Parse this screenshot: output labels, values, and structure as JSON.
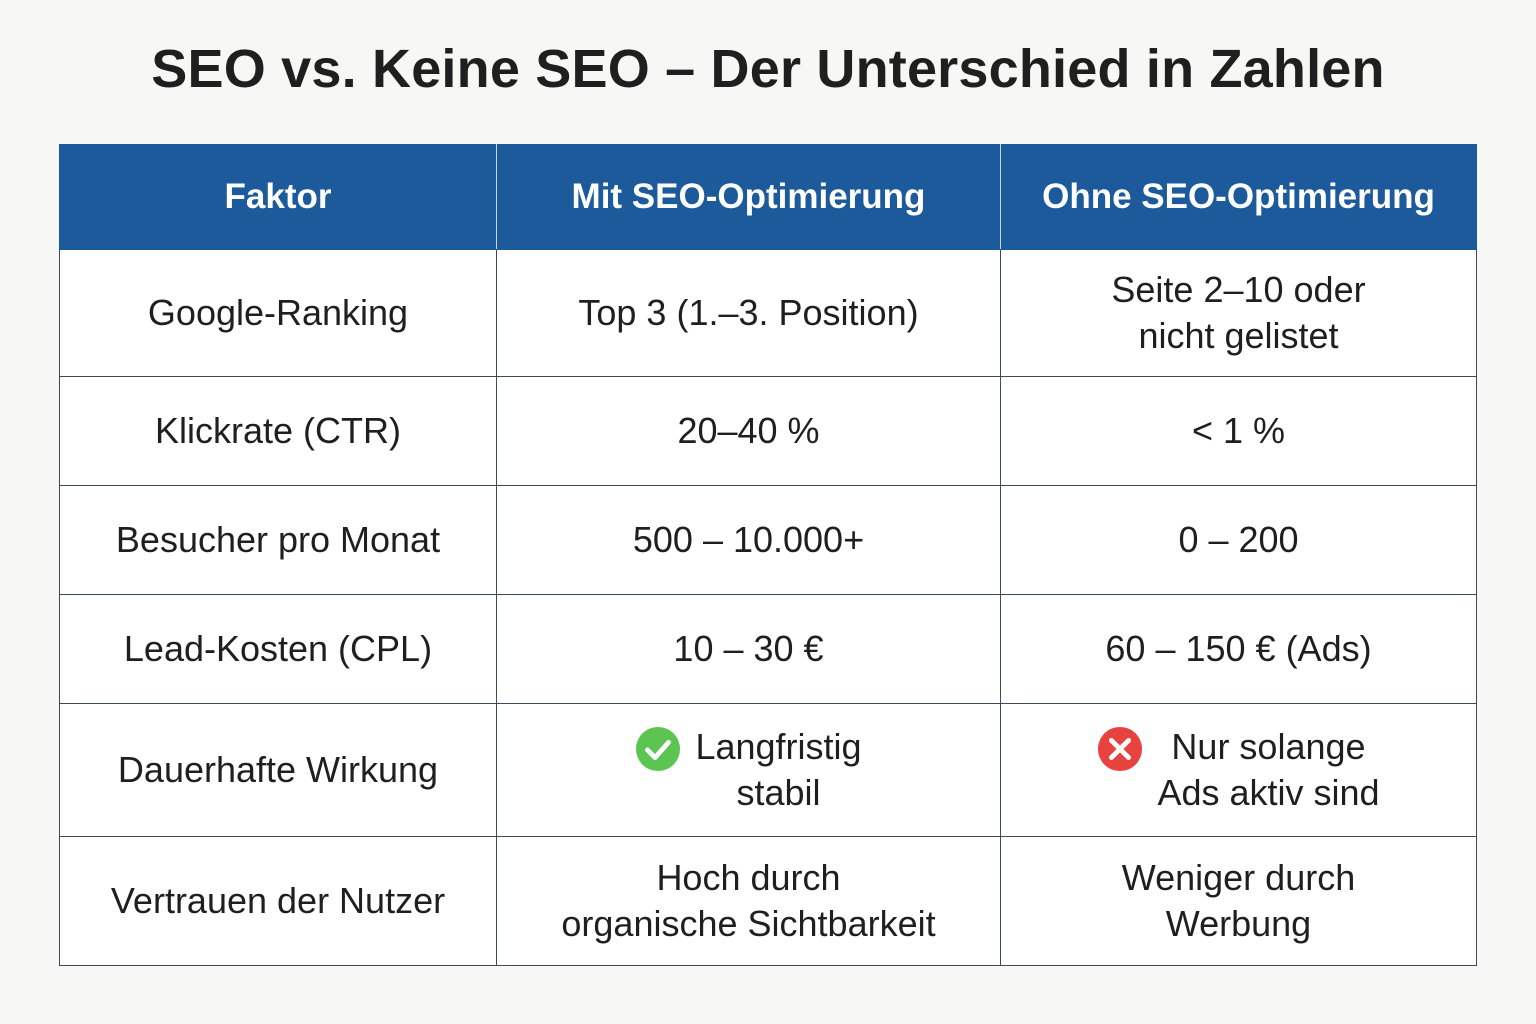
{
  "title": "SEO vs. Keine SEO – Der Unterschied in Zahlen",
  "colors": {
    "header_bg": "#1d5a9c",
    "header_text": "#ffffff",
    "check": "#5cc551",
    "cross": "#e8423f"
  },
  "chart_data": {
    "type": "table",
    "title": "SEO vs. Keine SEO – Der Unterschied in Zahlen",
    "columns": [
      "Faktor",
      "Mit SEO-Optimierung",
      "Ohne SEO-Optimierung"
    ],
    "rows": [
      [
        "Google-Ranking",
        "Top 3 (1.–3. Position)",
        "Seite 2–10 oder\nnicht gelistet"
      ],
      [
        "Klickrate (CTR)",
        "20–40 %",
        "< 1 %"
      ],
      [
        "Besucher pro Monat",
        "500 – 10.000+",
        "0 – 200"
      ],
      [
        "Lead-Kosten (CPL)",
        "10 – 30 €",
        "60 – 150 € (Ads)"
      ],
      [
        "Dauerhafte Wirkung",
        "Langfristig\nstabil",
        "Nur solange\nAds aktiv sind"
      ],
      [
        "Vertrauen der Nutzer",
        "Hoch durch\norganische Sichtbarkeit",
        "Weniger durch\nWerbung"
      ]
    ],
    "row_icons": {
      "4": [
        "",
        "check-icon",
        "cross-icon"
      ]
    }
  }
}
